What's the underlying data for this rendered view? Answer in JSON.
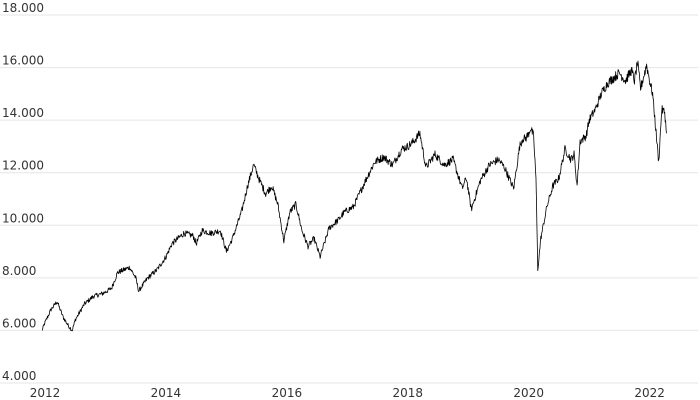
{
  "chart_data": {
    "type": "line",
    "title": "",
    "xlabel": "",
    "ylabel": "",
    "xlim": [
      2011.95,
      2022.8
    ],
    "ylim": [
      4000,
      18000
    ],
    "grid": true,
    "legend": "none",
    "line_color": "#000000",
    "grid_color": "#e6e6e6",
    "y_ticks": [
      4000,
      6000,
      8000,
      10000,
      12000,
      14000,
      16000,
      18000
    ],
    "y_tick_labels": [
      "4.000",
      "6.000",
      "8.000",
      "10.000",
      "12.000",
      "14.000",
      "16.000",
      "18.000"
    ],
    "x_ticks": [
      2012,
      2014,
      2016,
      2018,
      2020,
      2022
    ],
    "x_tick_labels": [
      "2012",
      "2014",
      "2016",
      "2018",
      "2020",
      "2022"
    ],
    "series": [
      {
        "x": [
          2011.95,
          2012.0,
          2012.1,
          2012.2,
          2012.3,
          2012.38,
          2012.45,
          2012.5,
          2012.65,
          2012.8,
          2012.95,
          2013.1,
          2013.2,
          2013.4,
          2013.5,
          2013.55,
          2013.7,
          2013.85,
          2014.0,
          2014.1,
          2014.3,
          2014.45,
          2014.5,
          2014.6,
          2014.75,
          2014.9,
          2015.0,
          2015.1,
          2015.25,
          2015.35,
          2015.45,
          2015.55,
          2015.65,
          2015.75,
          2015.85,
          2015.95,
          2016.05,
          2016.15,
          2016.25,
          2016.35,
          2016.45,
          2016.55,
          2016.7,
          2016.85,
          2016.95,
          2017.1,
          2017.3,
          2017.45,
          2017.6,
          2017.75,
          2017.9,
          2018.0,
          2018.1,
          2018.2,
          2018.3,
          2018.45,
          2018.6,
          2018.75,
          2018.9,
          2018.97,
          2019.05,
          2019.2,
          2019.35,
          2019.5,
          2019.6,
          2019.75,
          2019.85,
          2019.9,
          2019.95,
          2020.0,
          2020.03,
          2020.08,
          2020.12,
          2020.15,
          2020.2,
          2020.3,
          2020.4,
          2020.5,
          2020.6,
          2020.7,
          2020.75,
          2020.8,
          2020.85,
          2020.95,
          2021.0,
          2021.1,
          2021.2,
          2021.3,
          2021.4,
          2021.5,
          2021.6,
          2021.65,
          2021.7,
          2021.75,
          2021.8,
          2021.85,
          2021.95,
          2022.0,
          2022.05,
          2022.1,
          2022.15,
          2022.2,
          2022.25,
          2022.28
        ],
        "y": [
          6000,
          6300,
          6800,
          7100,
          6500,
          6200,
          6000,
          6400,
          7000,
          7300,
          7400,
          7600,
          8200,
          8400,
          8000,
          7500,
          8000,
          8300,
          8800,
          9300,
          9700,
          9600,
          9300,
          9800,
          9700,
          9800,
          9000,
          9500,
          10500,
          11500,
          12300,
          11700,
          11200,
          11500,
          10800,
          9400,
          10500,
          10800,
          9800,
          9200,
          9500,
          8800,
          9900,
          10200,
          10500,
          10700,
          11700,
          12400,
          12600,
          12300,
          12900,
          13000,
          13200,
          13500,
          12200,
          12700,
          12300,
          12500,
          11400,
          11800,
          10600,
          11700,
          12300,
          12500,
          12200,
          11400,
          13000,
          13300,
          13300,
          13500,
          13700,
          13400,
          11800,
          8300,
          9500,
          10700,
          11500,
          11800,
          12900,
          12500,
          12700,
          11500,
          13200,
          13400,
          14000,
          14400,
          15000,
          15400,
          15600,
          15800,
          15500,
          15700,
          15900,
          15500,
          16200,
          15200,
          16100,
          15500,
          15000,
          13700,
          12400,
          14400,
          14300,
          13500
        ]
      }
    ]
  }
}
